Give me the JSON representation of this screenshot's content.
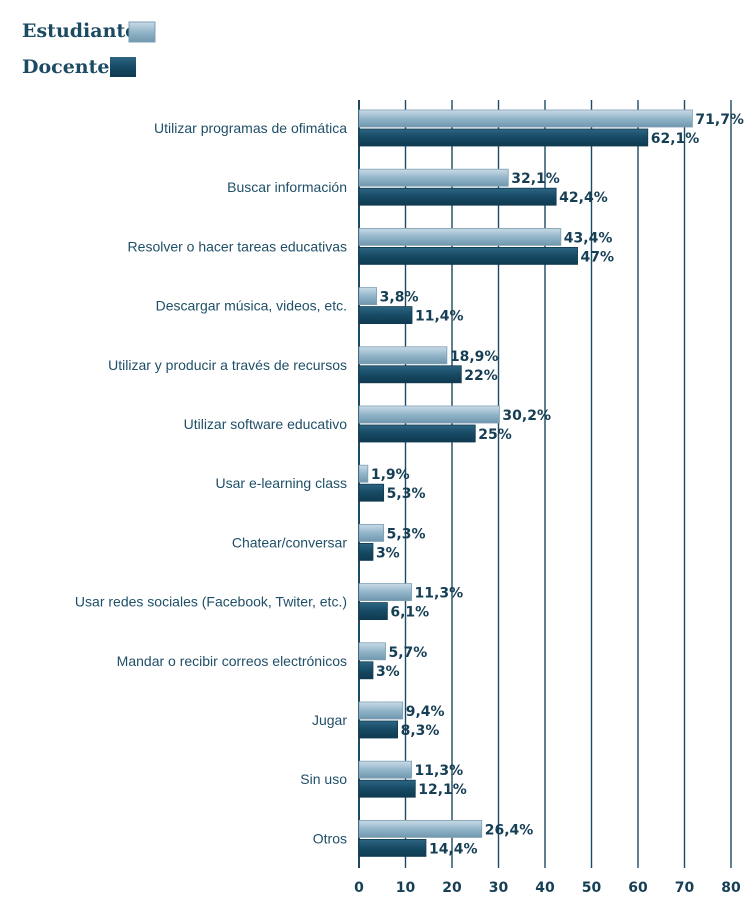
{
  "chart_data": {
    "type": "bar",
    "orientation": "horizontal",
    "title": "",
    "xlabel": "",
    "ylabel": "",
    "xlim": [
      0,
      80
    ],
    "x_ticks": [
      0,
      10,
      20,
      30,
      40,
      50,
      60,
      70,
      80
    ],
    "grid": true,
    "legend_position": "top-left",
    "categories": [
      "Utilizar programas de ofimática",
      "Buscar información",
      "Resolver o hacer tareas educativas",
      "Descargar música, videos, etc.",
      "Utilizar y producir a través de recursos",
      "Utilizar software educativo",
      "Usar e-learning class",
      "Chatear/conversar",
      "Usar redes sociales (Facebook, Twiter, etc.)",
      "Mandar o recibir correos electrónicos",
      "Jugar",
      "Sin uso",
      "Otros"
    ],
    "series": [
      {
        "name": "Estudiantes",
        "color": "#8fb2c6",
        "values": [
          71.7,
          32.1,
          43.4,
          3.8,
          18.9,
          30.2,
          1.9,
          5.3,
          11.3,
          5.7,
          9.4,
          11.3,
          26.4
        ],
        "labels": [
          "71,7%",
          "32,1%",
          "43,4%",
          "3,8%",
          "18,9%",
          "30,2%",
          "1,9%",
          "5,3%",
          "11,3%",
          "5,7%",
          "9,4%",
          "11,3%",
          "26,4%"
        ]
      },
      {
        "name": "Docentes",
        "color": "#174a64",
        "values": [
          62.1,
          42.4,
          47,
          11.4,
          22,
          25,
          5.3,
          3,
          6.1,
          3,
          8.3,
          12.1,
          14.4
        ],
        "labels": [
          "62,1%",
          "42,4%",
          "47%",
          "11,4%",
          "22%",
          "25%",
          "5,3%",
          "3%",
          "6,1%",
          "3%",
          "8,3%",
          "12,1%",
          "14,4%"
        ]
      }
    ]
  }
}
